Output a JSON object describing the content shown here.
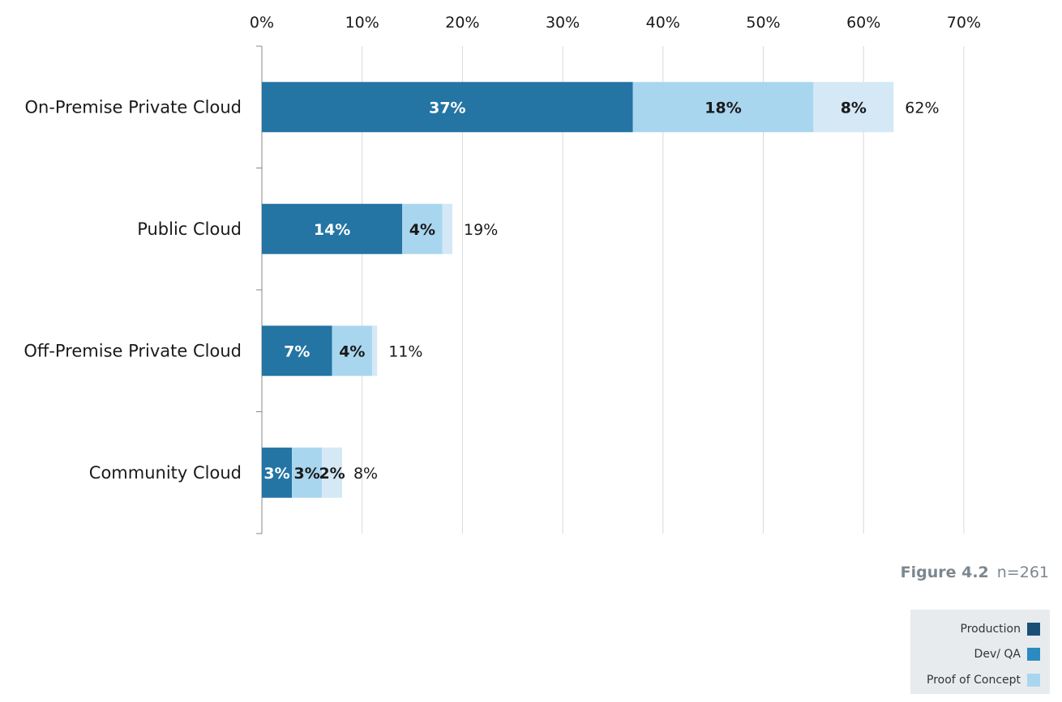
{
  "chart_data": {
    "type": "bar",
    "orientation": "horizontal",
    "stacked": true,
    "categories": [
      "On-Premise Private Cloud",
      "Public Cloud",
      "Off-Premise Private Cloud",
      "Community Cloud"
    ],
    "series": [
      {
        "name": "Production",
        "values": [
          37,
          14,
          7,
          3
        ],
        "labels": [
          "37%",
          "14%",
          "7%",
          "3%"
        ],
        "color": "#2474a4"
      },
      {
        "name": "Dev/ QA",
        "values": [
          18,
          4,
          4,
          3
        ],
        "labels": [
          "18%",
          "4%",
          "4%",
          "3%"
        ],
        "color": "#a9d6ef"
      },
      {
        "name": "Proof of Concept",
        "values": [
          8,
          1,
          0.5,
          2
        ],
        "labels": [
          "8%",
          "",
          "",
          "2%"
        ],
        "color": "#d4e8f6"
      }
    ],
    "totals": [
      "62%",
      "19%",
      "11%",
      "8%"
    ],
    "xlim": [
      0,
      70
    ],
    "xticks": [
      "0%",
      "10%",
      "20%",
      "30%",
      "40%",
      "50%",
      "60%",
      "70%"
    ],
    "grid": true,
    "legend_position": "bottom-right"
  },
  "caption": {
    "figure": "Figure 4.2",
    "n": "n=261"
  },
  "legend": {
    "items": [
      {
        "label": "Production",
        "color": "#1a5078"
      },
      {
        "label": "Dev/ QA",
        "color": "#2b8bc0"
      },
      {
        "label": "Proof of Concept",
        "color": "#a9d6ef"
      }
    ]
  }
}
